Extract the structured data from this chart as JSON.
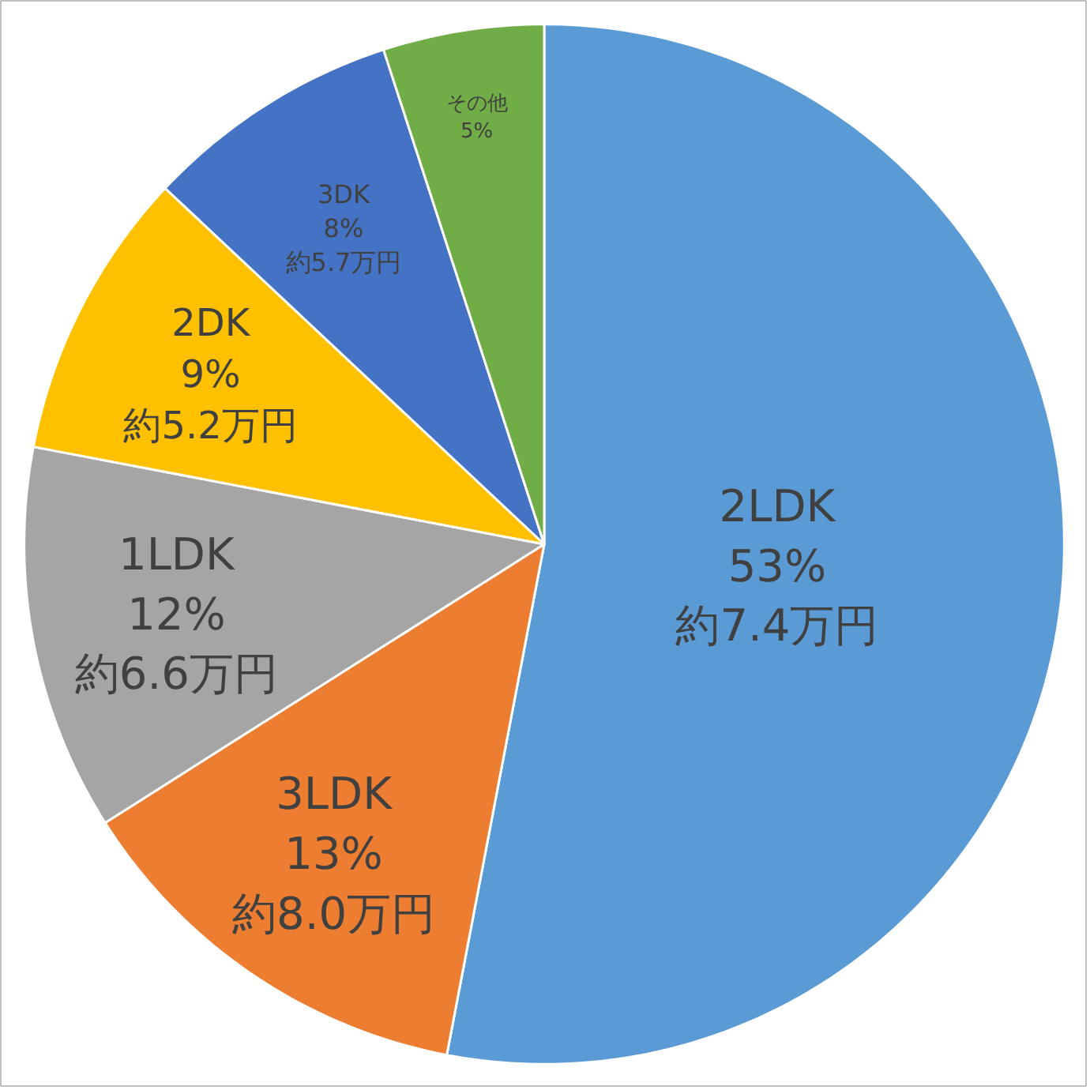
{
  "chart_data": {
    "type": "pie",
    "categories": [
      "2LDK",
      "3LDK",
      "1LDK",
      "2DK",
      "3DK",
      "その他"
    ],
    "values": [
      53,
      13,
      12,
      9,
      8,
      5
    ],
    "value_labels": [
      "53%",
      "13%",
      "12%",
      "9%",
      "8%",
      "5%"
    ],
    "colors": [
      "#5b9bd5",
      "#ed7d31",
      "#a5a5a5",
      "#ffc000",
      "#4472c4",
      "#70ad47"
    ],
    "annotations": [
      {
        "text": "約7.4万円",
        "x": "2LDK"
      },
      {
        "text": "約8.0万円",
        "x": "3LDK"
      },
      {
        "text": "約6.6万円",
        "x": "1LDK"
      },
      {
        "text": "約5.2万円",
        "x": "2DK"
      },
      {
        "text": "約5.7万円",
        "x": "3DK"
      }
    ],
    "legend": false
  }
}
